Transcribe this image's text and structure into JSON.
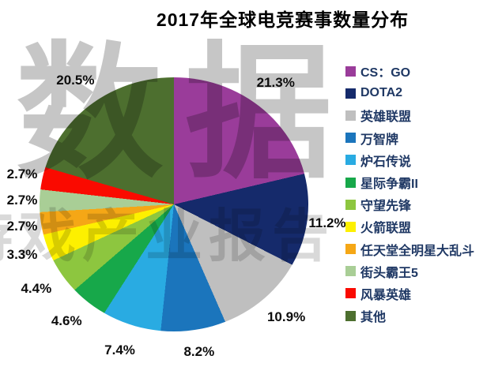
{
  "title": "2017年全球电竞赛事数量分布",
  "watermark": {
    "row1": "数据",
    "row2": "游戏产业报告"
  },
  "chart_data": {
    "type": "pie",
    "title": "2017年全球电竞赛事数量分布",
    "start_angle_deg": 0,
    "direction": "clockwise",
    "legend_position": "right",
    "value_suffix": "%",
    "slices": [
      {
        "label": "CS：GO",
        "value": 21.3,
        "percent_label": "21.3%",
        "color": "#9A3C9A"
      },
      {
        "label": "DOTA2",
        "value": 11.2,
        "percent_label": "11.2%",
        "color": "#152A6B"
      },
      {
        "label": "英雄联盟",
        "value": 10.9,
        "percent_label": "10.9%",
        "color": "#BFBFBF"
      },
      {
        "label": "万智牌",
        "value": 8.2,
        "percent_label": "8.2%",
        "color": "#1B75BC"
      },
      {
        "label": "炉石传说",
        "value": 7.4,
        "percent_label": "7.4%",
        "color": "#29ABE2"
      },
      {
        "label": "星际争霸II",
        "value": 4.6,
        "percent_label": "4.6%",
        "color": "#17A84A"
      },
      {
        "label": "守望先锋",
        "value": 4.4,
        "percent_label": "4.4%",
        "color": "#8DC63F"
      },
      {
        "label": "火箭联盟",
        "value": 3.3,
        "percent_label": "3.3%",
        "color": "#FDF000"
      },
      {
        "label": "任天堂全明星大乱斗",
        "value": 2.7,
        "percent_label": "2.7%",
        "color": "#F5A716"
      },
      {
        "label": "街头霸王5",
        "value": 2.7,
        "percent_label": "2.7%",
        "color": "#A9CE96"
      },
      {
        "label": "风暴英雄",
        "value": 2.7,
        "percent_label": "2.7%",
        "color": "#FA0A00"
      },
      {
        "label": "其他",
        "value": 20.5,
        "percent_label": "20.5%",
        "color": "#4D6F2F"
      }
    ]
  }
}
